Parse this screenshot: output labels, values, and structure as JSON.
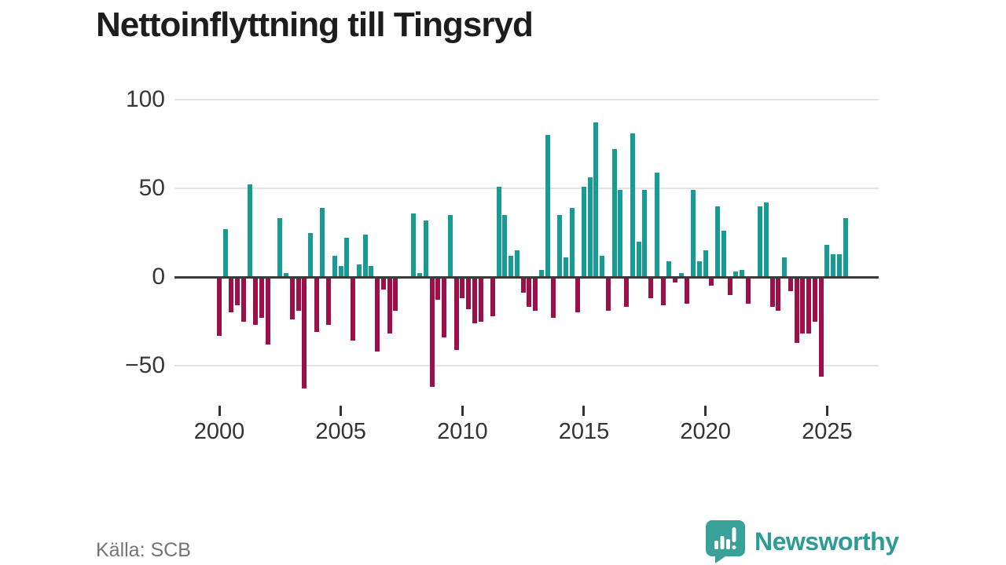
{
  "title": "Nettoinflyttning till Tingsryd",
  "source": {
    "text": "Källa: SCB"
  },
  "brand": {
    "name": "Newsworthy",
    "icon": "newsworthy-speech-bubble-chart-icon"
  },
  "colors": {
    "positive": "#169c94",
    "negative": "#9e0e48",
    "axis": "#3a3a3a",
    "grid": "#e4e4e4",
    "tick_text": "#383838",
    "title_text": "#1d1d1d",
    "source_text": "#757575",
    "brand_teal": "#2d9c94",
    "brand_icon_teal": "#3aa198"
  },
  "chart_data": {
    "type": "bar",
    "title": "Nettoinflyttning till Tingsryd",
    "xlabel": "",
    "ylabel": "",
    "frequency": "quarterly",
    "start_period": "2000 Q1",
    "end_period": "2025 Q4",
    "grid": "horizontal",
    "legend": "none",
    "ylim": [
      -70,
      100
    ],
    "y_ticks": [
      {
        "value": 100,
        "label": "100"
      },
      {
        "value": 50,
        "label": "50"
      },
      {
        "value": 0,
        "label": "0"
      },
      {
        "value": -50,
        "label": "−50"
      }
    ],
    "x_ticks": [
      {
        "label": "2000",
        "quarter_index": 0
      },
      {
        "label": "2005",
        "quarter_index": 20
      },
      {
        "label": "2010",
        "quarter_index": 40
      },
      {
        "label": "2015",
        "quarter_index": 60
      },
      {
        "label": "2020",
        "quarter_index": 80
      },
      {
        "label": "2025",
        "quarter_index": 100
      }
    ],
    "values": [
      -33,
      27,
      -20,
      -16,
      -25,
      52,
      -27,
      -23,
      -38,
      0,
      33,
      2,
      -24,
      -19,
      -63,
      25,
      -31,
      39,
      -27,
      12,
      6,
      22,
      -36,
      7,
      24,
      6,
      -42,
      -7,
      -32,
      -19,
      0,
      0,
      36,
      2,
      32,
      -62,
      -13,
      -34,
      35,
      -41,
      -12,
      -18,
      -26,
      -25,
      0,
      -22,
      51,
      35,
      12,
      15,
      -9,
      -17,
      -19,
      4,
      80,
      -23,
      35,
      11,
      39,
      -20,
      51,
      56,
      87,
      12,
      -19,
      72,
      49,
      -17,
      81,
      20,
      49,
      -12,
      59,
      -16,
      9,
      -3,
      2,
      -15,
      49,
      9,
      15,
      -5,
      40,
      26,
      -10,
      3,
      4,
      -15,
      0,
      40,
      42,
      -17,
      -19,
      11,
      -8,
      -37,
      -32,
      -32,
      -25,
      -56,
      18,
      13,
      13,
      33
    ]
  }
}
